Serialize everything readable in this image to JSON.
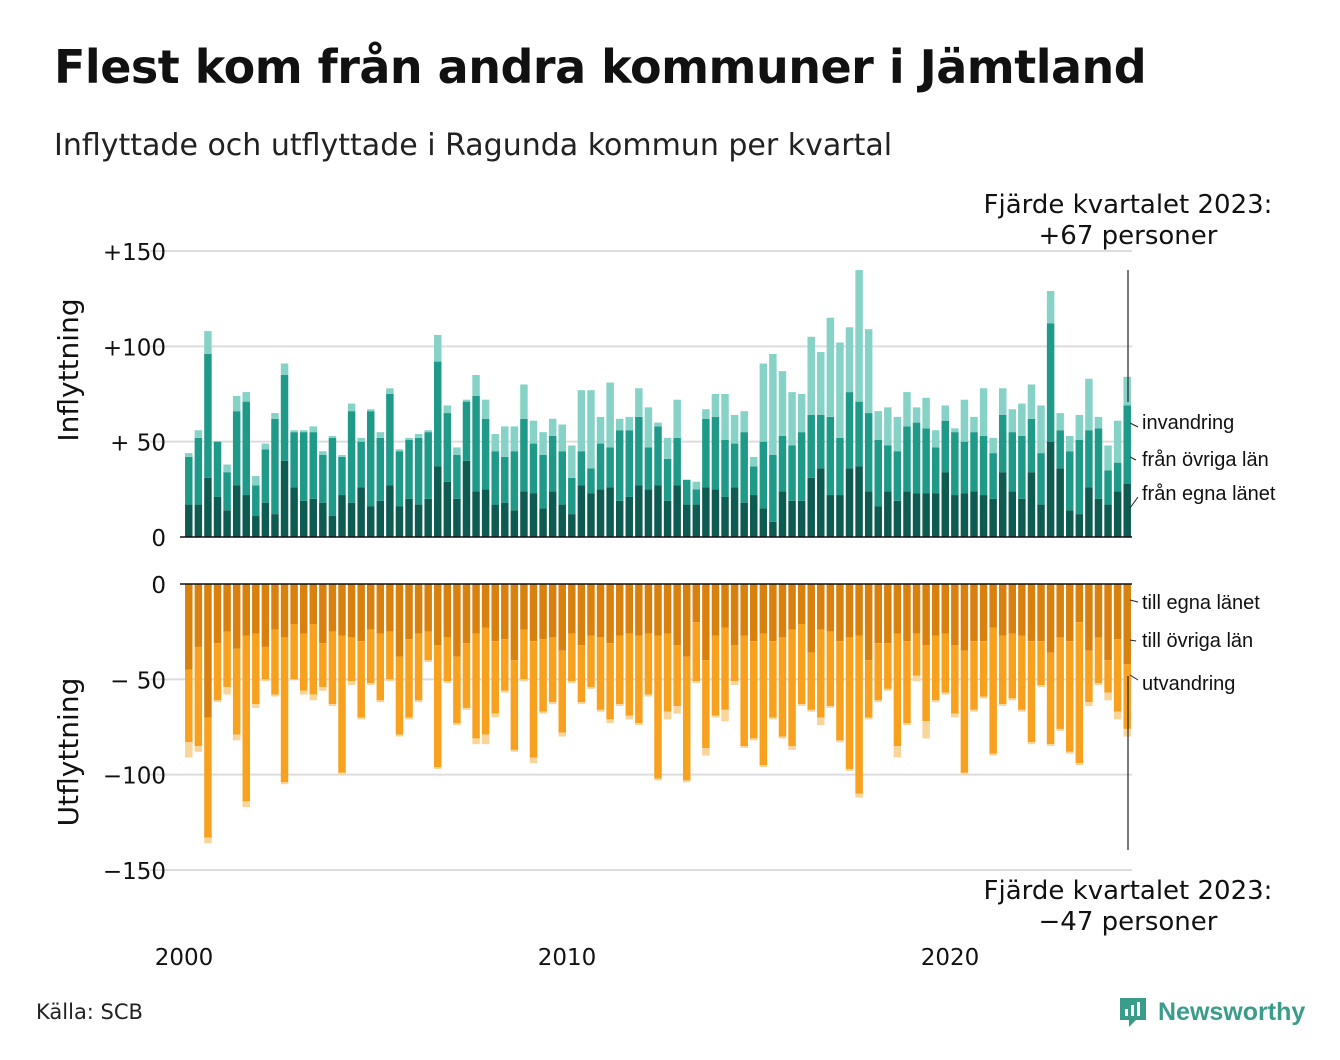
{
  "title": "Flest kom från andra kommuner i Jämtland",
  "subtitle": "Inflyttade och utflyttade i Ragunda kommun per kvartal",
  "source": "Källa: SCB",
  "brand": "Newsworthy",
  "annotations": {
    "top_line1": "Fjärde kvartalet 2023:",
    "top_line2": "+67 personer",
    "bottom_line1": "Fjärde kvartalet 2023:",
    "bottom_line2": "−47 personer"
  },
  "colors": {
    "in_egna": "#0e5b51",
    "in_ovriga": "#1f9a88",
    "in_invandring": "#86d2c6",
    "ut_egna": "#d8810f",
    "ut_ovriga": "#f7a11f",
    "ut_utvandring": "#fad59a",
    "grid": "#dddddd",
    "brand": "#3a9c8a"
  },
  "chart_data": [
    {
      "type": "bar",
      "stacked": true,
      "name_axis": "Inflyttning",
      "ylim": [
        0,
        150
      ],
      "y_ticks": [
        "0",
        "+ 50",
        "+100",
        "+150"
      ],
      "x_ticks": [
        "2000",
        "2010",
        "2020"
      ],
      "series": [
        {
          "name": "från egna länet",
          "color": "#0e5b51",
          "values": [
            17,
            17,
            31,
            21,
            14,
            27,
            22,
            11,
            18,
            12,
            40,
            26,
            19,
            20,
            18,
            11,
            22,
            18,
            26,
            16,
            19,
            27,
            16,
            20,
            17,
            20,
            37,
            29,
            20,
            40,
            24,
            25,
            17,
            18,
            14,
            24,
            23,
            15,
            24,
            17,
            12,
            27,
            23,
            25,
            26,
            19,
            21,
            27,
            25,
            27,
            19,
            27,
            17,
            17,
            26,
            25,
            21,
            26,
            18,
            22,
            15,
            8,
            24,
            19,
            19,
            31,
            36,
            22,
            22,
            36,
            37,
            24,
            16,
            24,
            19,
            24,
            23,
            23,
            23,
            34,
            22,
            23,
            24,
            22,
            20,
            34,
            24,
            20,
            34,
            17,
            50,
            36,
            14,
            12,
            26,
            20,
            17,
            24,
            28
          ]
        },
        {
          "name": "från övriga län",
          "color": "#1f9a88",
          "values": [
            25,
            35,
            65,
            29,
            20,
            39,
            49,
            16,
            28,
            50,
            45,
            29,
            36,
            35,
            25,
            41,
            20,
            48,
            24,
            50,
            33,
            48,
            29,
            31,
            35,
            35,
            55,
            36,
            23,
            31,
            50,
            37,
            28,
            24,
            31,
            38,
            26,
            28,
            29,
            28,
            19,
            18,
            13,
            24,
            21,
            37,
            35,
            36,
            22,
            31,
            22,
            25,
            13,
            8,
            36,
            38,
            30,
            23,
            37,
            15,
            35,
            35,
            29,
            29,
            36,
            33,
            28,
            41,
            30,
            40,
            34,
            41,
            35,
            24,
            26,
            34,
            37,
            34,
            24,
            27,
            33,
            27,
            31,
            31,
            24,
            30,
            31,
            33,
            28,
            27,
            62,
            20,
            31,
            39,
            30,
            37,
            18,
            15,
            41
          ]
        },
        {
          "name": "invandring",
          "color": "#86d2c6",
          "values": [
            2,
            4,
            12,
            0,
            4,
            8,
            5,
            5,
            3,
            3,
            6,
            1,
            1,
            3,
            2,
            1,
            1,
            4,
            2,
            1,
            3,
            3,
            1,
            1,
            2,
            1,
            14,
            4,
            4,
            1,
            11,
            10,
            9,
            16,
            13,
            18,
            12,
            12,
            9,
            14,
            17,
            32,
            41,
            14,
            34,
            6,
            7,
            15,
            21,
            2,
            11,
            20,
            0,
            4,
            5,
            12,
            24,
            15,
            11,
            5,
            41,
            53,
            34,
            28,
            20,
            41,
            33,
            52,
            50,
            34,
            69,
            44,
            15,
            20,
            18,
            18,
            8,
            16,
            9,
            8,
            2,
            22,
            8,
            25,
            8,
            14,
            12,
            17,
            18,
            25,
            17,
            9,
            8,
            13,
            27,
            6,
            13,
            22,
            15
          ]
        }
      ]
    },
    {
      "type": "bar",
      "stacked": true,
      "name_axis": "Utflyttning",
      "ylim": [
        -150,
        0
      ],
      "y_ticks": [
        "0",
        "− 50",
        "−100",
        "−150"
      ],
      "x_ticks": [
        "2000",
        "2010",
        "2020"
      ],
      "series": [
        {
          "name": "till egna länet",
          "color": "#d8810f",
          "values": [
            -45,
            -33,
            -70,
            -31,
            -25,
            -34,
            -27,
            -26,
            -33,
            -24,
            -28,
            -21,
            -26,
            -21,
            -31,
            -25,
            -27,
            -28,
            -30,
            -24,
            -26,
            -25,
            -38,
            -29,
            -26,
            -25,
            -32,
            -28,
            -38,
            -31,
            -26,
            -23,
            -30,
            -29,
            -40,
            -24,
            -30,
            -29,
            -28,
            -35,
            -26,
            -32,
            -27,
            -28,
            -31,
            -27,
            -26,
            -27,
            -26,
            -27,
            -26,
            -32,
            -38,
            -20,
            -40,
            -27,
            -23,
            -32,
            -27,
            -30,
            -26,
            -30,
            -28,
            -24,
            -21,
            -36,
            -24,
            -25,
            -30,
            -28,
            -27,
            -40,
            -31,
            -31,
            -26,
            -30,
            -26,
            -32,
            -27,
            -26,
            -32,
            -35,
            -30,
            -30,
            -23,
            -27,
            -26,
            -27,
            -30,
            -30,
            -36,
            -28,
            -30,
            -20,
            -35,
            -28,
            -40,
            -29,
            -42
          ]
        },
        {
          "name": "till övriga län",
          "color": "#f7a11f",
          "values": [
            -38,
            -52,
            -63,
            -30,
            -29,
            -45,
            -87,
            -37,
            -17,
            -34,
            -76,
            -29,
            -30,
            -37,
            -23,
            -38,
            -72,
            -23,
            -40,
            -28,
            -35,
            -25,
            -41,
            -41,
            -35,
            -15,
            -64,
            -23,
            -35,
            -34,
            -55,
            -56,
            -38,
            -27,
            -47,
            -26,
            -61,
            -38,
            -34,
            -43,
            -25,
            -30,
            -27,
            -38,
            -40,
            -36,
            -43,
            -46,
            -32,
            -75,
            -41,
            -32,
            -65,
            -31,
            -46,
            -42,
            -43,
            -19,
            -58,
            -51,
            -69,
            -40,
            -52,
            -61,
            -42,
            -30,
            -46,
            -39,
            -52,
            -69,
            -83,
            -30,
            -30,
            -24,
            -59,
            -43,
            -22,
            -40,
            -34,
            -31,
            -36,
            -64,
            -36,
            -29,
            -66,
            -36,
            -34,
            -39,
            -53,
            -23,
            -48,
            -48,
            -58,
            -74,
            -27,
            -24,
            -17,
            -38,
            -34
          ]
        },
        {
          "name": "utvandring",
          "color": "#fad59a",
          "values": [
            -8,
            -3,
            -3,
            -1,
            -4,
            -3,
            -3,
            -2,
            -1,
            -1,
            -1,
            0,
            -2,
            -3,
            -2,
            -1,
            -1,
            -2,
            -1,
            -1,
            -1,
            -1,
            -1,
            -1,
            -1,
            -1,
            -1,
            -1,
            -1,
            -1,
            -3,
            -5,
            -2,
            -1,
            -1,
            -1,
            -3,
            -1,
            -1,
            -2,
            -1,
            -1,
            -1,
            -1,
            -2,
            -1,
            -2,
            -1,
            -1,
            -1,
            -4,
            -4,
            -1,
            -1,
            -4,
            -1,
            -6,
            -2,
            -1,
            -1,
            -1,
            -1,
            -1,
            -2,
            -1,
            -1,
            -4,
            -1,
            -1,
            -1,
            -2,
            -1,
            -1,
            -1,
            -6,
            -1,
            -3,
            -9,
            -1,
            -1,
            -2,
            -1,
            -1,
            -1,
            -1,
            -1,
            -1,
            -1,
            -1,
            -1,
            -1,
            -1,
            -1,
            -1,
            -2,
            -1,
            -4,
            -4,
            -4
          ]
        }
      ]
    }
  ]
}
